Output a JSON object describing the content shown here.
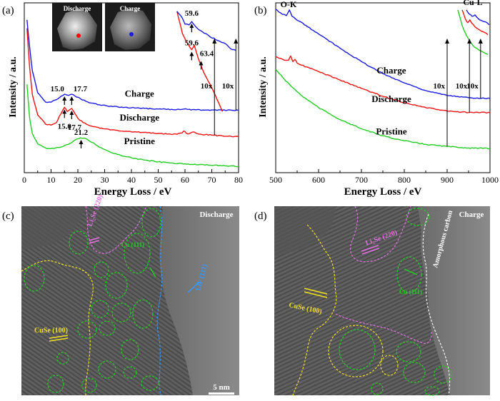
{
  "panels": {
    "a": {
      "label": "(a)",
      "inset_titles": [
        "Discharge",
        "Charge"
      ]
    },
    "b": {
      "label": "(b)"
    },
    "c": {
      "label": "(c)",
      "title": "Discharge",
      "scale_bar": "5 nm",
      "annotations": [
        "Li₂Se (220)",
        "Cu (111)",
        "LiF (111)",
        "CuSe (100)"
      ]
    },
    "d": {
      "label": "(d)",
      "title": "Charge",
      "annotations": [
        "Li₂Se (220)",
        "CuSe (100)",
        "Cu (111)",
        "Amorphous carbon"
      ]
    }
  },
  "colors": {
    "pristine": "#22cc22",
    "discharge": "#ee1111",
    "charge": "#1a1ae0",
    "cuse": "#f0e020",
    "cu": "#22cc22",
    "li2se": "#e070e0",
    "lif": "#3399ff",
    "carbon": "#ffffff"
  },
  "chart_data": [
    {
      "type": "line",
      "panel": "(a)",
      "xlabel": "Energy Loss / eV",
      "ylabel": "Intensity / a.u.",
      "xlim": [
        0,
        80
      ],
      "xticks": [
        0,
        10,
        20,
        30,
        40,
        50,
        60,
        70,
        80
      ],
      "series": [
        {
          "name": "Pristine",
          "color": "#22cc22",
          "x": [
            1,
            2,
            3,
            5,
            8,
            11,
            14,
            17,
            19,
            21,
            23,
            25,
            28,
            32,
            36,
            40,
            45,
            50,
            55,
            60,
            65,
            70,
            75,
            80
          ],
          "y": [
            5.2,
            3.2,
            2.3,
            1.7,
            1.45,
            1.42,
            1.52,
            1.72,
            1.93,
            2.06,
            2.0,
            1.8,
            1.5,
            1.22,
            1.02,
            0.88,
            0.74,
            0.64,
            0.57,
            0.52,
            0.47,
            0.43,
            0.4,
            0.37
          ]
        },
        {
          "name": "Discharge",
          "color": "#ee1111",
          "x": [
            1,
            2,
            3,
            5,
            8,
            10,
            12,
            13,
            15,
            16,
            17.7,
            19,
            20,
            22,
            24,
            27,
            30,
            34,
            38,
            42,
            46,
            50,
            54,
            57,
            59,
            59.6,
            60.5,
            61,
            62,
            63.4,
            64.5,
            66,
            70,
            74,
            80
          ],
          "y": [
            8.5,
            6.2,
            4.6,
            3.4,
            2.85,
            2.8,
            2.95,
            3.3,
            3.85,
            3.6,
            3.78,
            3.45,
            3.2,
            2.95,
            2.8,
            2.68,
            2.58,
            2.5,
            2.44,
            2.39,
            2.35,
            2.31,
            2.28,
            2.26,
            2.35,
            2.45,
            2.32,
            2.28,
            2.33,
            2.4,
            2.3,
            2.26,
            2.21,
            2.17,
            2.13
          ]
        },
        {
          "name": "Charge",
          "color": "#1a1ae0",
          "x": [
            1,
            2,
            3,
            5,
            8,
            10,
            12,
            15,
            16.5,
            17.7,
            19,
            21,
            23,
            25,
            28,
            31,
            35,
            40,
            45,
            50,
            55,
            58,
            59.6,
            61,
            64,
            68,
            74,
            80
          ],
          "y": [
            9.0,
            7.4,
            6.0,
            4.7,
            4.15,
            4.15,
            4.3,
            4.62,
            4.55,
            4.62,
            4.5,
            4.35,
            4.2,
            4.1,
            4.0,
            3.93,
            3.87,
            3.82,
            3.78,
            3.75,
            3.73,
            3.72,
            3.75,
            3.72,
            3.7,
            3.69,
            3.68,
            3.67
          ]
        },
        {
          "name": "Discharge",
          "color": "#ee1111",
          "x": [
            57,
            59,
            60.5,
            62.5,
            63.5,
            65,
            67,
            70,
            72,
            74
          ],
          "y": [
            9.5,
            8.2,
            7.7,
            7.25,
            7.5,
            6.7,
            5.9,
            5.0,
            4.3,
            3.6
          ]
        },
        {
          "name": "Charge",
          "color": "#1a1ae0",
          "x": [
            57,
            59,
            60,
            61.5,
            62.5,
            64,
            66,
            69,
            72,
            75,
            77,
            79
          ],
          "y": [
            9.5,
            9.1,
            8.75,
            8.7,
            8.9,
            8.6,
            8.35,
            8.05,
            7.8,
            7.6,
            7.3,
            7.2
          ]
        }
      ],
      "annotations": [
        {
          "text": "15.0",
          "x": 15.0,
          "y": 4.62
        },
        {
          "text": "17.7",
          "x": 17.7,
          "y": 4.62
        },
        {
          "text": "15.0",
          "x": 15.0,
          "y": 3.85
        },
        {
          "text": "17.7",
          "x": 17.7,
          "y": 3.78
        },
        {
          "text": "21.2",
          "x": 21.2,
          "y": 2.06
        },
        {
          "text": "59.6",
          "x": 62.5,
          "y": 8.9
        },
        {
          "text": "59.6",
          "x": 62.5,
          "y": 7.25
        },
        {
          "text": "63.4",
          "x": 66,
          "y": 6.7
        },
        {
          "text": "10x",
          "x": 71,
          "y": 2.2
        },
        {
          "text": "10x",
          "x": 79,
          "y": 3.67
        }
      ],
      "labels": [
        {
          "text": "Charge",
          "x": 43,
          "y": 4.22
        },
        {
          "text": "Discharge",
          "x": 43,
          "y": 2.82
        },
        {
          "text": "Pristine",
          "x": 43,
          "y": 1.42
        }
      ]
    },
    {
      "type": "line",
      "panel": "(b)",
      "xlabel": "Energy Loss / eV",
      "ylabel": "Intensity / a.u.",
      "xlim": [
        500,
        1000
      ],
      "xticks": [
        500,
        600,
        700,
        800,
        900,
        1000
      ],
      "series": [
        {
          "name": "Pristine",
          "color": "#22cc22",
          "x": [
            500,
            520,
            540,
            560,
            600,
            650,
            700,
            750,
            800,
            850,
            900,
            950,
            1000
          ],
          "y": [
            7.3,
            6.6,
            6.0,
            5.45,
            4.6,
            3.75,
            3.1,
            2.6,
            2.25,
            2.0,
            1.85,
            1.75,
            1.7
          ]
        },
        {
          "name": "Discharge",
          "color": "#ee1111",
          "x": [
            500,
            520,
            530,
            535,
            540,
            545,
            550,
            560,
            600,
            650,
            700,
            750,
            800,
            850,
            900,
            950,
            1000
          ],
          "y": [
            8.2,
            7.95,
            7.95,
            8.25,
            7.85,
            8.0,
            7.75,
            7.6,
            7.15,
            6.55,
            5.95,
            5.4,
            4.95,
            4.6,
            4.35,
            4.25,
            4.25
          ]
        },
        {
          "name": "Charge",
          "color": "#1a1ae0",
          "x": [
            500,
            515,
            525,
            532,
            538,
            545,
            555,
            575,
            600,
            650,
            700,
            750,
            800,
            850,
            900,
            950,
            1000
          ],
          "y": [
            11.55,
            11.2,
            11.1,
            11.5,
            11.05,
            10.9,
            10.7,
            10.3,
            9.8,
            8.8,
            7.85,
            7.0,
            6.35,
            5.8,
            5.45,
            5.3,
            5.25
          ]
        },
        {
          "name": "Pristine",
          "color": "#22cc22",
          "x": [
            925,
            935,
            945,
            955,
            965,
            975,
            985,
            995
          ],
          "y": [
            11.5,
            10.4,
            9.7,
            9.2,
            8.85,
            8.65,
            8.5,
            8.35
          ]
        },
        {
          "name": "Discharge",
          "color": "#ee1111",
          "x": [
            935,
            942,
            948,
            953,
            958,
            965,
            975,
            985,
            995
          ],
          "y": [
            11.5,
            10.9,
            10.6,
            10.8,
            10.55,
            10.3,
            10.1,
            9.95,
            9.75
          ]
        },
        {
          "name": "Charge",
          "color": "#1a1ae0",
          "x": [
            945,
            952,
            958,
            965,
            972,
            980,
            990,
            998
          ],
          "y": [
            11.5,
            11.2,
            11.05,
            11.15,
            10.9,
            10.75,
            10.65,
            10.45
          ]
        }
      ],
      "annotations": [
        {
          "text": "O-K",
          "x": 530,
          "y": 11.7
        },
        {
          "text": "Cu-L",
          "x": 960,
          "y": 11.85
        },
        {
          "text": "10x",
          "x": 900,
          "y": 1.85
        },
        {
          "text": "10x",
          "x": 952,
          "y": 4.25
        },
        {
          "text": "10x",
          "x": 978,
          "y": 5.25
        }
      ],
      "labels": [
        {
          "text": "Charge",
          "x": 770,
          "y": 6.7
        },
        {
          "text": "Discharge",
          "x": 770,
          "y": 4.7
        },
        {
          "text": "Pristine",
          "x": 770,
          "y": 2.4
        }
      ]
    }
  ]
}
